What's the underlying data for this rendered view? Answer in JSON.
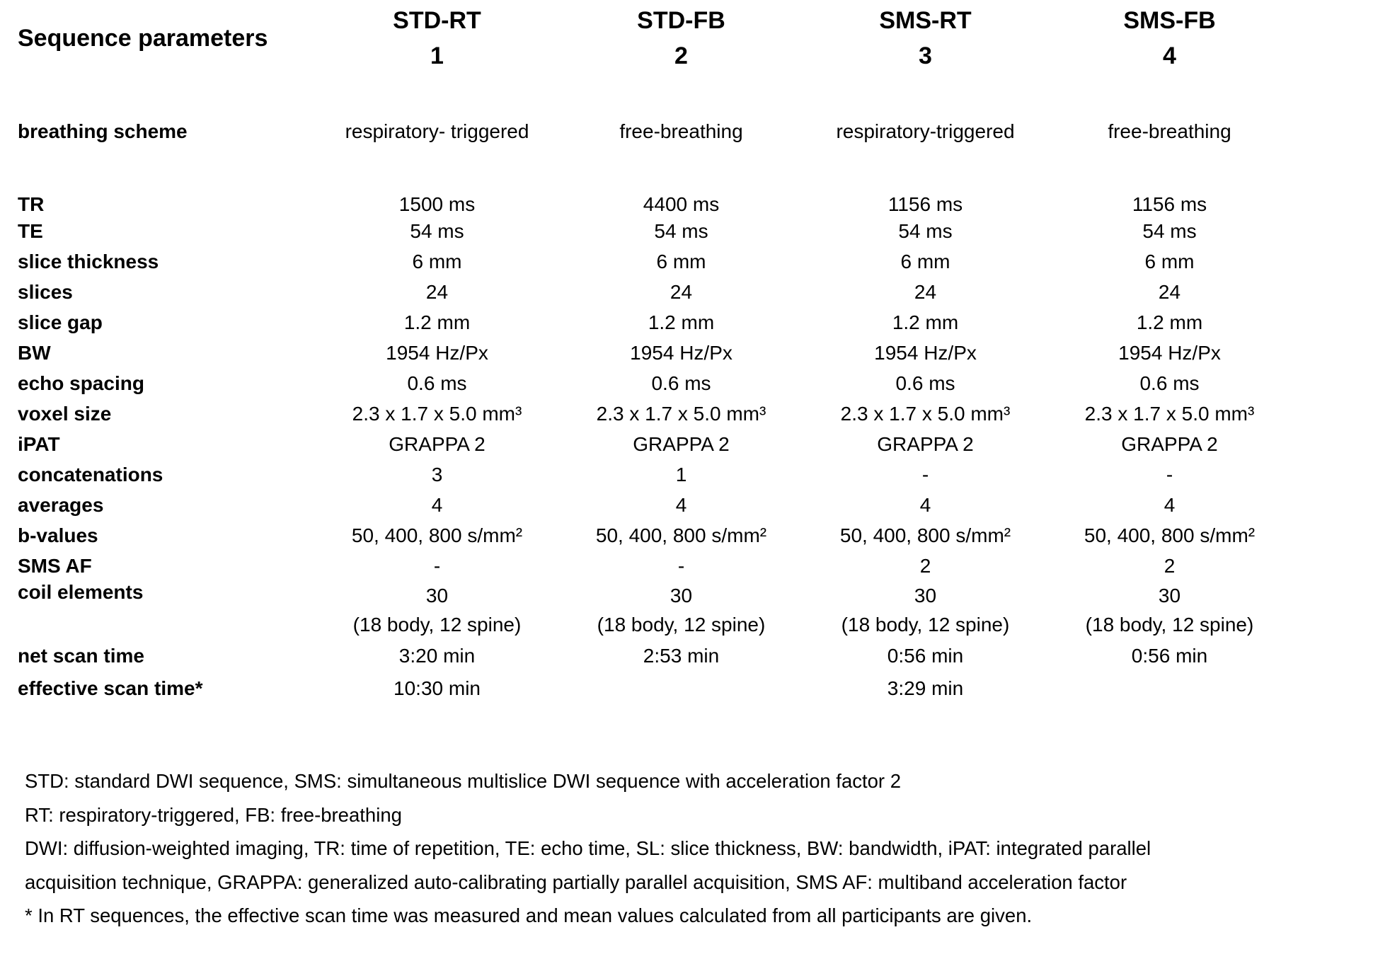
{
  "table": {
    "header_label": "Sequence parameters",
    "columns": [
      {
        "name": "STD-RT",
        "number": "1"
      },
      {
        "name": "STD-FB",
        "number": "2"
      },
      {
        "name": "SMS-RT",
        "number": "3"
      },
      {
        "name": "SMS-FB",
        "number": "4"
      }
    ],
    "rows": [
      {
        "label": "breathing scheme",
        "values": [
          "respiratory- triggered",
          "free-breathing",
          "respiratory-triggered",
          "free-breathing"
        ]
      },
      {
        "label": "TR",
        "values": [
          "1500 ms",
          "4400 ms",
          "1156 ms",
          "1156 ms"
        ]
      },
      {
        "label": "TE",
        "values": [
          "54 ms",
          "54 ms",
          "54 ms",
          "54 ms"
        ]
      },
      {
        "label": "slice thickness",
        "values": [
          "6 mm",
          "6 mm",
          "6 mm",
          "6 mm"
        ]
      },
      {
        "label": "slices",
        "values": [
          "24",
          "24",
          "24",
          "24"
        ]
      },
      {
        "label": "slice gap",
        "values": [
          "1.2 mm",
          "1.2 mm",
          "1.2 mm",
          "1.2 mm"
        ]
      },
      {
        "label": "BW",
        "values": [
          "1954 Hz/Px",
          "1954 Hz/Px",
          "1954 Hz/Px",
          "1954 Hz/Px"
        ]
      },
      {
        "label": "echo spacing",
        "values": [
          "0.6 ms",
          "0.6 ms",
          "0.6 ms",
          "0.6 ms"
        ]
      },
      {
        "label": "voxel size",
        "values": [
          "2.3 x 1.7 x 5.0 mm³",
          "2.3 x 1.7 x 5.0 mm³",
          "2.3 x 1.7 x 5.0 mm³",
          "2.3 x 1.7 x 5.0 mm³"
        ]
      },
      {
        "label": "iPAT",
        "values": [
          "GRAPPA 2",
          "GRAPPA 2",
          "GRAPPA 2",
          "GRAPPA 2"
        ]
      },
      {
        "label": "concatenations",
        "values": [
          "3",
          "1",
          "-",
          "-"
        ]
      },
      {
        "label": "averages",
        "values": [
          "4",
          "4",
          "4",
          "4"
        ]
      },
      {
        "label": "b-values",
        "values": [
          "50, 400, 800 s/mm²",
          "50, 400, 800 s/mm²",
          "50, 400, 800 s/mm²",
          "50, 400, 800 s/mm²"
        ]
      },
      {
        "label": "SMS AF",
        "values": [
          "-",
          "-",
          "2",
          "2"
        ]
      },
      {
        "label": "coil elements",
        "values": [
          "30",
          "30",
          "30",
          "30"
        ],
        "subvalues": [
          "(18 body, 12 spine)",
          "(18 body, 12 spine)",
          "(18 body, 12 spine)",
          "(18 body, 12 spine)"
        ]
      },
      {
        "label": "net scan time",
        "values": [
          "3:20 min",
          "2:53 min",
          "0:56 min",
          "0:56 min"
        ]
      },
      {
        "label": "effective scan time*",
        "values": [
          "10:30 min",
          "",
          "3:29 min",
          ""
        ]
      }
    ]
  },
  "notes": [
    "STD: standard DWI sequence, SMS: simultaneous multislice DWI sequence with acceleration factor 2",
    "RT: respiratory-triggered, FB: free-breathing",
    "DWI: diffusion-weighted imaging, TR: time of repetition, TE: echo time, SL: slice thickness, BW: bandwidth, iPAT: integrated parallel",
    "acquisition technique, GRAPPA: generalized auto-calibrating partially parallel acquisition, SMS AF: multiband acceleration factor",
    "* In RT sequences, the effective scan time was measured and mean values calculated from all participants are given."
  ]
}
